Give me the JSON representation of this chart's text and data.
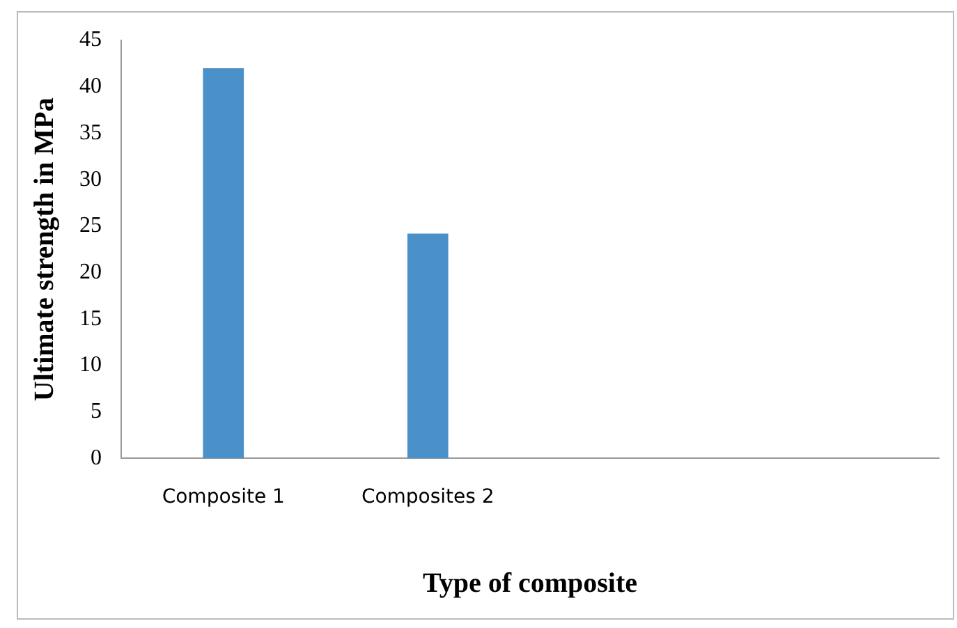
{
  "chart_data": {
    "type": "bar",
    "xlabel": "Type of composite",
    "ylabel": "Ultimate strength in MPa",
    "categories": [
      "Composite 1",
      "Composites 2",
      null,
      null
    ],
    "values": [
      42,
      24.2,
      null,
      null
    ],
    "color": "#4a91c9",
    "ylim": [
      0,
      45
    ],
    "yticks": [
      0,
      5,
      10,
      15,
      20,
      25,
      30,
      35,
      40,
      45
    ],
    "grid": false,
    "legend": false
  }
}
